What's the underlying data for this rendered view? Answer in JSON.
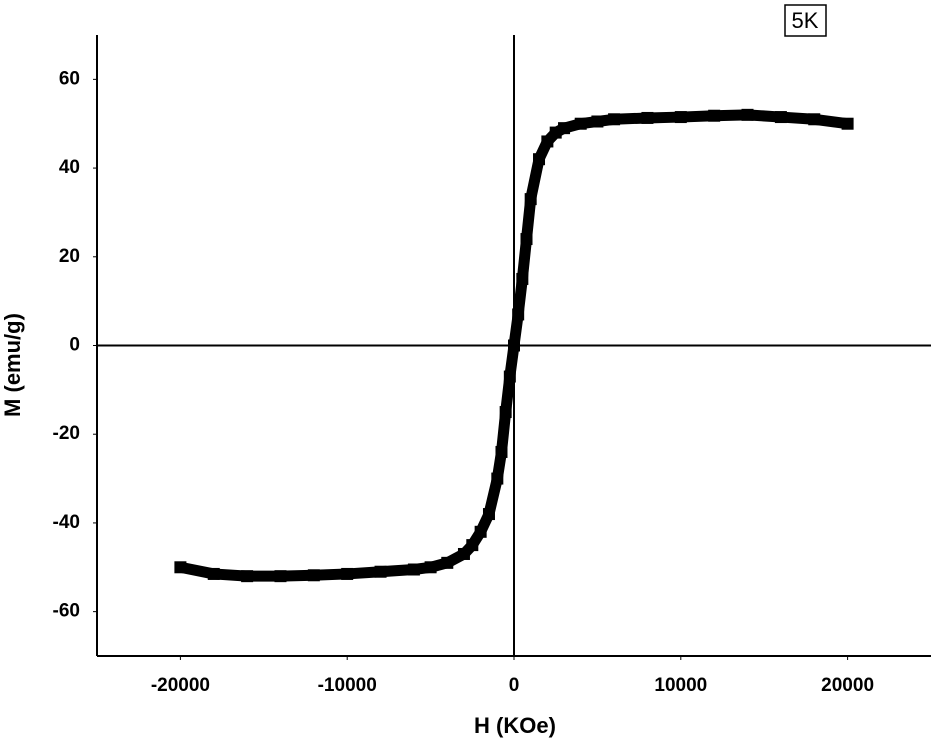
{
  "chart_data": {
    "type": "scatter",
    "x_label": "H (KOe)",
    "y_label": "M (emu/g)",
    "annotation": "5K",
    "color": "#000000",
    "marker": "square",
    "x": [
      -20000,
      -18000,
      -16000,
      -14000,
      -12000,
      -10000,
      -8000,
      -6000,
      -5000,
      -4000,
      -3000,
      -2500,
      -2000,
      -1500,
      -1000,
      -750,
      -500,
      -250,
      0,
      250,
      500,
      750,
      1000,
      1500,
      2000,
      2500,
      3000,
      4000,
      5000,
      6000,
      8000,
      10000,
      12000,
      14000,
      16000,
      18000,
      20000
    ],
    "values": [
      -50,
      -51.5,
      -52,
      -52,
      -51.8,
      -51.5,
      -51,
      -50.5,
      -50,
      -49,
      -47,
      -45,
      -42,
      -38,
      -30,
      -24,
      -15,
      -7,
      0,
      7,
      15,
      24,
      33,
      42,
      46,
      48,
      49,
      50,
      50.5,
      51,
      51.3,
      51.5,
      51.8,
      52,
      51.5,
      51,
      50
    ],
    "xlim": [
      -25000,
      25000
    ],
    "xticks": [
      -20000,
      -10000,
      0,
      10000,
      20000
    ],
    "ylim": [
      -70,
      70
    ],
    "yticks": [
      -60,
      -40,
      -20,
      0,
      20,
      40,
      60
    ],
    "grid": false
  }
}
